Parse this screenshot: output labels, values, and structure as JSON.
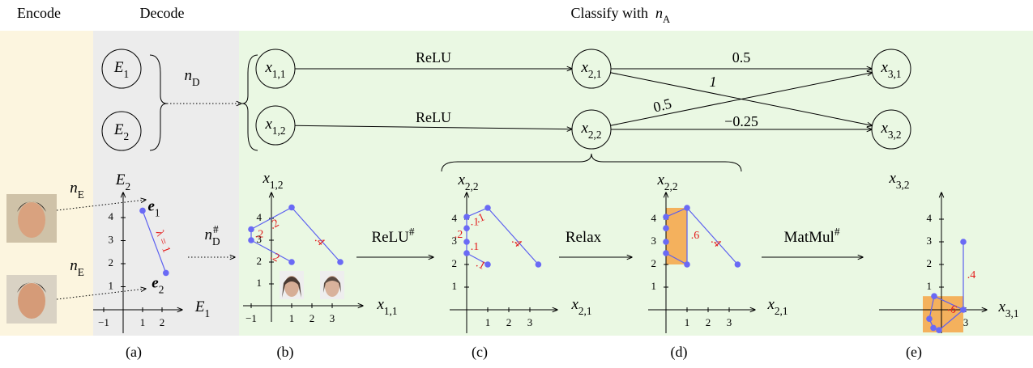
{
  "header": {
    "encode": "Encode",
    "decode": "Decode",
    "classify": "Classify with",
    "classify_net": {
      "base": "n",
      "sub": "A"
    }
  },
  "nodes": [
    {
      "base": "E",
      "sub": "1"
    },
    {
      "base": "E",
      "sub": "2"
    },
    {
      "base": "x",
      "sub": "1,1"
    },
    {
      "base": "x",
      "sub": "1,2"
    },
    {
      "base": "x",
      "sub": "2,1"
    },
    {
      "base": "x",
      "sub": "2,2"
    },
    {
      "base": "x",
      "sub": "3,1"
    },
    {
      "base": "x",
      "sub": "3,2"
    }
  ],
  "edge_labels": [
    "ReLU",
    "ReLU",
    "0.5",
    "1",
    "0.5",
    "−0.25"
  ],
  "decoder": {
    "base": "n",
    "sub": "D"
  },
  "encoders": [
    {
      "base": "n",
      "sub": "E"
    },
    {
      "base": "n",
      "sub": "E"
    }
  ],
  "transitions": [
    {
      "base": "n",
      "sub": "D",
      "sup": "#"
    },
    {
      "base": "ReLU",
      "sup": "#"
    },
    {
      "base": "Relax"
    },
    {
      "base": "MatMul",
      "sup": "#"
    }
  ],
  "panels": [
    {
      "caption": "(a)",
      "xlabel": {
        "base": "E",
        "sub": "1"
      },
      "ylabel": {
        "base": "E",
        "sub": "2"
      },
      "xticks": [
        {
          "value": -1,
          "label": "−1"
        },
        1,
        2
      ],
      "yticks": [
        1,
        2,
        3,
        4
      ],
      "points": [
        [
          1,
          4.3
        ],
        [
          2.2,
          1.6
        ]
      ],
      "point_labels": [
        {
          "base": "e",
          "sub": "1"
        },
        {
          "base": "e",
          "sub": "2"
        }
      ],
      "segment_labels": [
        "λ = 1"
      ]
    },
    {
      "caption": "(b)",
      "xlabel": {
        "base": "x",
        "sub": "1,1"
      },
      "ylabel": {
        "base": "x",
        "sub": "1,2"
      },
      "xticks": [
        {
          "value": -1,
          "label": "−1"
        },
        1,
        2,
        3
      ],
      "yticks": [
        1,
        2,
        3,
        4
      ],
      "points": [
        [
          -1,
          3.5
        ],
        [
          1,
          4.5
        ],
        [
          3.4,
          2
        ],
        [
          -1,
          3
        ],
        [
          1,
          2
        ]
      ],
      "segment_labels": [
        ".2",
        ".4",
        ".2",
        ".2"
      ]
    },
    {
      "caption": "(c)",
      "xlabel": {
        "base": "x",
        "sub": "2,1"
      },
      "ylabel": {
        "base": "x",
        "sub": "2,2"
      },
      "xticks": [
        1,
        2,
        3
      ],
      "yticks": [
        1,
        2,
        3,
        4
      ],
      "points": [
        [
          1,
          4.5
        ],
        [
          3.4,
          2
        ],
        [
          0,
          4.1
        ],
        [
          0,
          3.6
        ],
        [
          0,
          3
        ],
        [
          0,
          2.5
        ],
        [
          1,
          2
        ]
      ],
      "segment_labels": [
        ".1",
        ".4",
        ".1",
        ".2",
        ".1",
        ".1"
      ]
    },
    {
      "caption": "(d)",
      "xlabel": {
        "base": "x",
        "sub": "2,1"
      },
      "ylabel": {
        "base": "x",
        "sub": "2,2"
      },
      "xticks": [
        1,
        2,
        3
      ],
      "yticks": [
        1,
        2,
        3,
        4
      ],
      "points": [
        [
          1,
          4.5
        ],
        [
          3.4,
          2
        ],
        [
          0,
          4.1
        ],
        [
          0,
          3.6
        ],
        [
          0,
          3
        ],
        [
          0,
          2.5
        ],
        [
          1,
          2
        ]
      ],
      "rect": [
        0,
        2,
        1,
        4.5
      ],
      "segment_labels": [
        ".4",
        ".6"
      ]
    },
    {
      "caption": "(e)",
      "xlabel": {
        "base": "x",
        "sub": "3,1"
      },
      "ylabel": {
        "base": "x",
        "sub": "3,2"
      },
      "xticks": [
        3
      ],
      "yticks": [
        1,
        2,
        3,
        4
      ],
      "points": [
        [
          2.7,
          3
        ],
        [
          2.7,
          0
        ],
        [
          -0.9,
          0.6
        ],
        [
          -1.5,
          -0.4
        ],
        [
          -1,
          -0.8
        ],
        [
          -0.3,
          -0.9
        ]
      ],
      "rect": [
        -2.3,
        -1,
        2.7,
        0.6
      ],
      "segment_labels": [
        ".4",
        ".6"
      ]
    }
  ]
}
